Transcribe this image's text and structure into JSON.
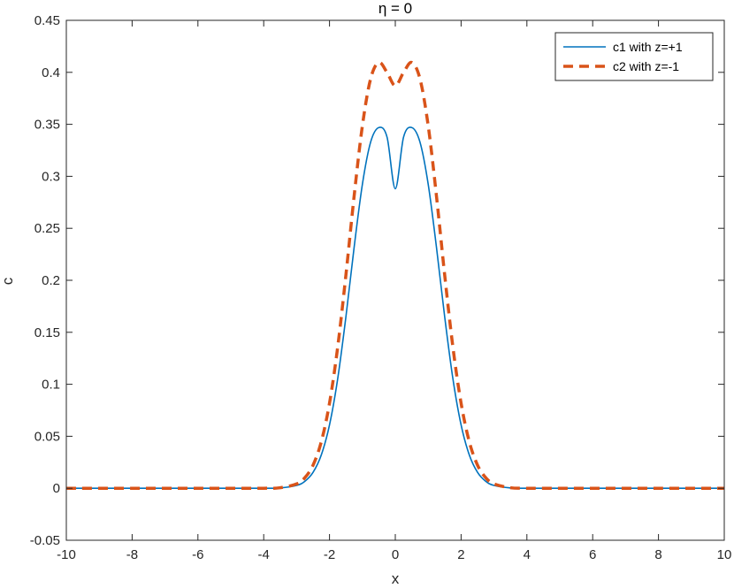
{
  "chart_data": {
    "type": "line",
    "title": "η = 0",
    "xlabel": "x",
    "ylabel": "c",
    "xlim": [
      -10,
      10
    ],
    "ylim": [
      -0.05,
      0.45
    ],
    "xticks": [
      "-10",
      "-8",
      "-6",
      "-4",
      "-2",
      "0",
      "2",
      "4",
      "6",
      "8",
      "10"
    ],
    "yticks": [
      "-0.05",
      "0",
      "0.05",
      "0.1",
      "0.15",
      "0.2",
      "0.25",
      "0.3",
      "0.35",
      "0.4",
      "0.45"
    ],
    "grid": false,
    "legend_position": "top-right",
    "x": [
      -10,
      -8,
      -6,
      -4,
      -3.5,
      -3,
      -2.75,
      -2.5,
      -2.25,
      -2,
      -1.75,
      -1.5,
      -1.25,
      -1,
      -0.75,
      -0.5,
      -0.25,
      0,
      0.25,
      0.5,
      0.75,
      1,
      1.25,
      1.5,
      1.75,
      2,
      2.25,
      2.5,
      2.75,
      3,
      3.5,
      4,
      6,
      8,
      10
    ],
    "series": [
      {
        "name": "c1 with z=+1",
        "color": "#0072BD",
        "style": "solid",
        "values": [
          0,
          0,
          0,
          0,
          0.0003,
          0.0027,
          0.0067,
          0.0153,
          0.032,
          0.0609,
          0.1055,
          0.1652,
          0.2321,
          0.2924,
          0.3329,
          0.3469,
          0.3376,
          0.288,
          0.3376,
          0.3469,
          0.3329,
          0.2924,
          0.2321,
          0.1652,
          0.1055,
          0.0609,
          0.032,
          0.0153,
          0.0067,
          0.0027,
          0.0003,
          0,
          0,
          0,
          0
        ]
      },
      {
        "name": "c2 with z=-1",
        "color": "#D95319",
        "style": "dashed",
        "values": [
          0,
          0,
          0,
          0,
          0.0005,
          0.0042,
          0.0101,
          0.0222,
          0.0447,
          0.0818,
          0.136,
          0.2055,
          0.2814,
          0.3487,
          0.3938,
          0.4095,
          0.3998,
          0.387,
          0.3998,
          0.4095,
          0.3938,
          0.3487,
          0.2814,
          0.2055,
          0.136,
          0.0818,
          0.0447,
          0.0222,
          0.0101,
          0.0042,
          0.0005,
          0,
          0,
          0,
          0
        ]
      }
    ]
  }
}
